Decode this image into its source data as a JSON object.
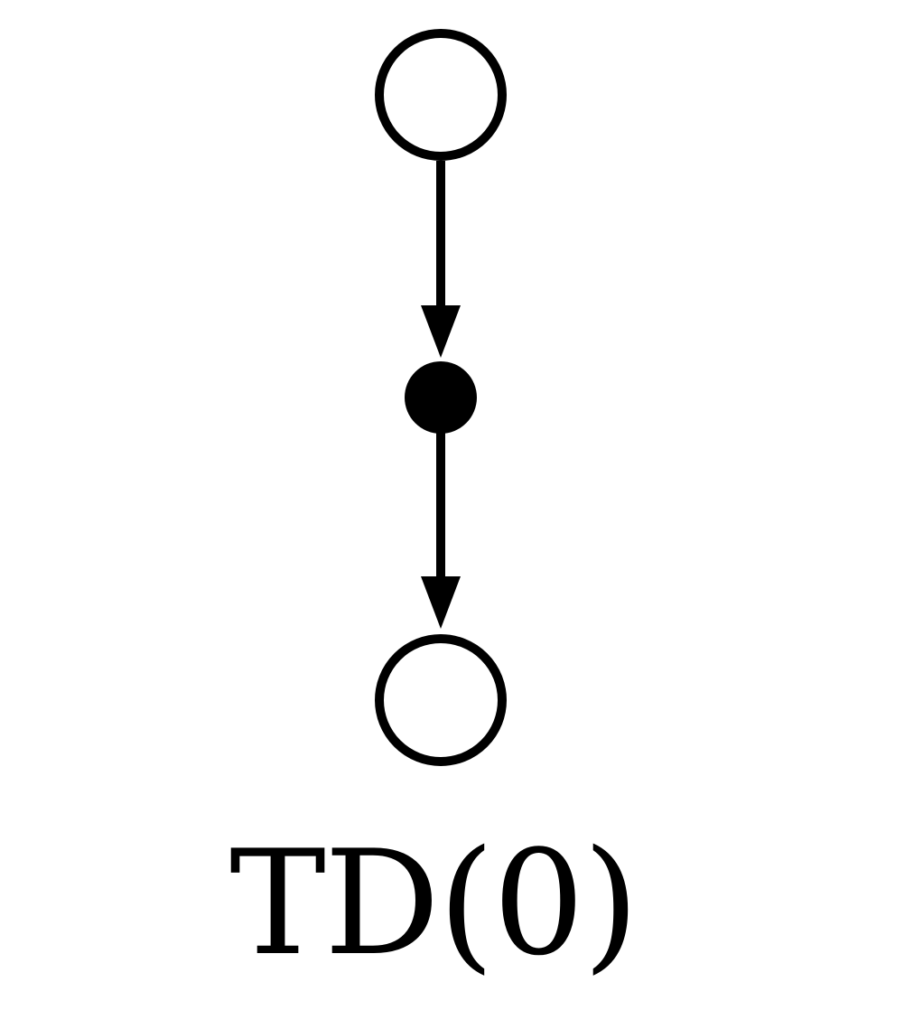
{
  "diagram": {
    "type": "backup-diagram",
    "caption": "TD(0)",
    "nodes": [
      {
        "id": "state-top",
        "kind": "state",
        "style": "hollow"
      },
      {
        "id": "action",
        "kind": "action",
        "style": "filled"
      },
      {
        "id": "state-bottom",
        "kind": "state",
        "style": "hollow"
      }
    ],
    "edges": [
      {
        "from": "state-top",
        "to": "action"
      },
      {
        "from": "action",
        "to": "state-bottom"
      }
    ],
    "colors": {
      "stroke": "#000000",
      "fill": "#ffffff",
      "action_fill": "#000000",
      "background": "#ffffff"
    }
  }
}
